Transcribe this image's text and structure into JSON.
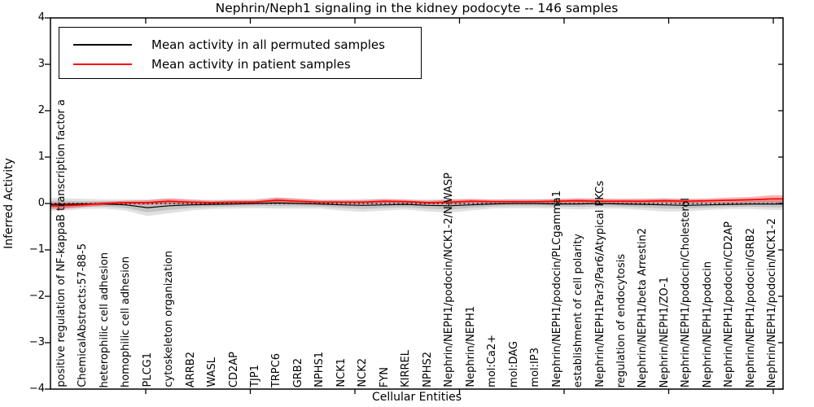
{
  "title": "Nephrin/Neph1 signaling in the kidney podocyte -- 146 samples",
  "axes": {
    "x_label": "Cellular Entities",
    "y_label": "Inferred Activity",
    "y_tick_values": [
      4,
      3,
      2,
      1,
      0,
      -1,
      -2,
      -3,
      -4
    ],
    "y_tick_labels": [
      "4",
      "3",
      "2",
      "1",
      "0",
      "−1",
      "−2",
      "−3",
      "−4"
    ],
    "y_range": [
      -4,
      4
    ]
  },
  "legend": {
    "entries": [
      {
        "label": "Mean activity in all permuted samples",
        "color": "#000000"
      },
      {
        "label": "Mean activity in patient samples",
        "color": "#ff0000"
      }
    ]
  },
  "colors": {
    "frame": "#000000",
    "permuted_line": "#000000",
    "patient_line": "#ff0000",
    "permuted_band": "rgba(120,120,120,0.22)",
    "permuted_band_inner": "rgba(120,120,120,0.28)",
    "patient_band": "rgba(255,0,0,0.30)",
    "zero_line": "#000000"
  },
  "chart_data": {
    "type": "line",
    "title": "Nephrin/Neph1 signaling in the kidney podocyte -- 146 samples",
    "xlabel": "Cellular Entities",
    "ylabel": "Inferred Activity",
    "ylim": [
      -4,
      4
    ],
    "grid": false,
    "legend_position": "upper left",
    "zero_line": {
      "value": 0,
      "style": "dotted"
    },
    "categories": [
      "positive regulation of NF-kappaB transcription factor a",
      "ChemicalAbstracts:57-88-5",
      "heterophilic cell adhesion",
      "homophilic cell adhesion",
      "PLCG1",
      "cytoskeleton organization",
      "ARRB2",
      "WASL",
      "CD2AP",
      "TJP1",
      "TRPC6",
      "GRB2",
      "NPHS1",
      "NCK1",
      "NCK2",
      "FYN",
      "KIRREL",
      "NPHS2",
      "Nephrin/NEPH1/podocin/NCK1-2/N-WASP",
      "Nephrin/NEPH1",
      "mol:Ca2+",
      "mol:DAG",
      "mol:IP3",
      "Nephrin/NEPH1/podocin/PLCgamma1",
      "establishment of cell polarity",
      "Nephrin/NEPH1Par3/Par6/Atypical PKCs",
      "regulation of endocytosis",
      "Nephrin/NEPH1/beta Arrestin2",
      "Nephrin/NEPH1/ZO-1",
      "Nephrin/NEPH1/podocin/Cholesterol",
      "Nephrin/NEPH1/podocin",
      "Nephrin/NEPH1/podocin/CD2AP",
      "Nephrin/NEPH1/podocin/GRB2",
      "Nephrin/NEPH1/podocin/NCK1-2"
    ],
    "series": [
      {
        "name": "Mean activity in all permuted samples",
        "values": [
          -0.02,
          -0.01,
          -0.01,
          -0.03,
          -0.09,
          -0.05,
          -0.03,
          -0.02,
          -0.01,
          0,
          0.01,
          0,
          -0.01,
          -0.03,
          -0.04,
          -0.03,
          -0.02,
          -0.04,
          -0.05,
          -0.03,
          -0.01,
          0,
          0,
          -0.01,
          -0.01,
          0,
          -0.01,
          -0.02,
          -0.03,
          -0.04,
          -0.03,
          -0.02,
          -0.01,
          -0.01
        ]
      },
      {
        "name": "Mean activity in patient samples",
        "values": [
          -0.05,
          -0.03,
          0,
          0.02,
          0.02,
          0.05,
          0.03,
          0.02,
          0.03,
          0.03,
          0.07,
          0.05,
          0.03,
          0.03,
          0.03,
          0.05,
          0.04,
          0.02,
          0.03,
          0.05,
          0.04,
          0.04,
          0.04,
          0.05,
          0.06,
          0.05,
          0.05,
          0.05,
          0.06,
          0.05,
          0.06,
          0.07,
          0.08,
          0.1
        ]
      }
    ],
    "bands": [
      {
        "around": "Mean activity in all permuted samples",
        "half_widths": [
          0.14,
          0.11,
          0.1,
          0.12,
          0.18,
          0.16,
          0.12,
          0.1,
          0.1,
          0.1,
          0.12,
          0.11,
          0.1,
          0.12,
          0.14,
          0.12,
          0.11,
          0.13,
          0.15,
          0.12,
          0.1,
          0.1,
          0.1,
          0.1,
          0.12,
          0.11,
          0.1,
          0.12,
          0.14,
          0.13,
          0.11,
          0.1,
          0.11,
          0.13
        ]
      },
      {
        "around": "Mean activity in patient samples",
        "half_widths": [
          0.07,
          0.05,
          0.04,
          0.04,
          0.05,
          0.06,
          0.05,
          0.04,
          0.04,
          0.04,
          0.06,
          0.05,
          0.04,
          0.04,
          0.04,
          0.05,
          0.04,
          0.04,
          0.05,
          0.05,
          0.04,
          0.04,
          0.04,
          0.05,
          0.05,
          0.05,
          0.05,
          0.05,
          0.05,
          0.05,
          0.05,
          0.06,
          0.06,
          0.08
        ]
      }
    ]
  }
}
